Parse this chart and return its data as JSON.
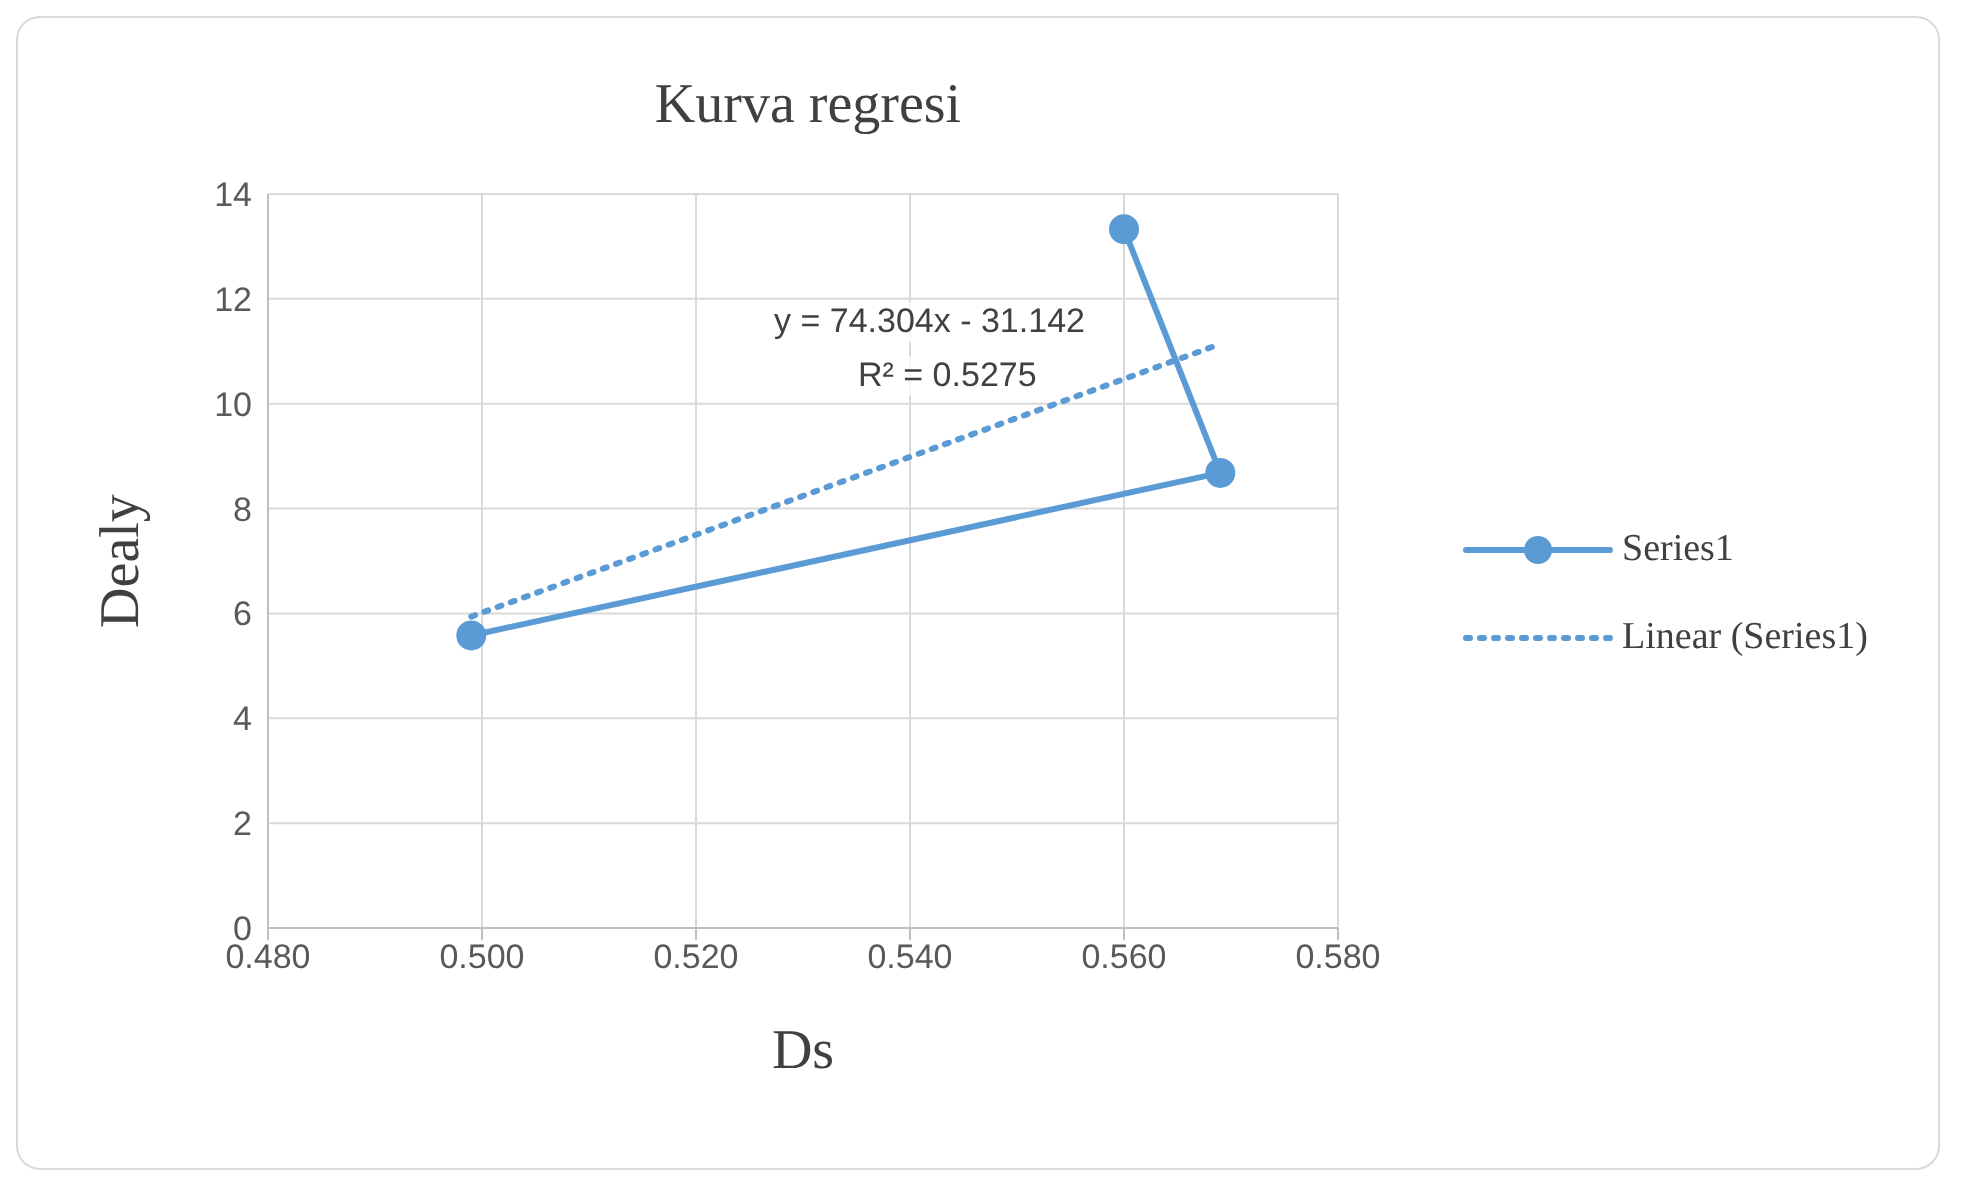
{
  "chart_data": {
    "type": "line",
    "title": "Kurva regresi",
    "xlabel": "Ds",
    "ylabel": "Dealy",
    "x": [
      0.499,
      0.569,
      0.56
    ],
    "series": [
      {
        "name": "Series1",
        "color": "#5b9bd5",
        "values": [
          5.58,
          8.68,
          13.33
        ],
        "marker": "circle",
        "line_style": "solid"
      },
      {
        "name": "Linear (Series1)",
        "color": "#5b9bd5",
        "type": "line",
        "x": [
          0.499,
          0.569
        ],
        "values": [
          5.94,
          11.14
        ],
        "marker": "none",
        "line_style": "dotted"
      }
    ],
    "annotations": [
      "y = 74.304x - 31.142",
      "R² = 0.5275"
    ],
    "xlim": [
      0.48,
      0.58
    ],
    "xticks": [
      {
        "value": 0.48,
        "label": "0.480"
      },
      {
        "value": 0.5,
        "label": "0.500"
      },
      {
        "value": 0.52,
        "label": "0.520"
      },
      {
        "value": 0.54,
        "label": "0.540"
      },
      {
        "value": 0.56,
        "label": "0.560"
      },
      {
        "value": 0.58,
        "label": "0.580"
      }
    ],
    "ylim": [
      0,
      14
    ],
    "yticks": [
      0,
      2,
      4,
      6,
      8,
      10,
      12,
      14
    ],
    "grid": true,
    "legend": "right"
  }
}
